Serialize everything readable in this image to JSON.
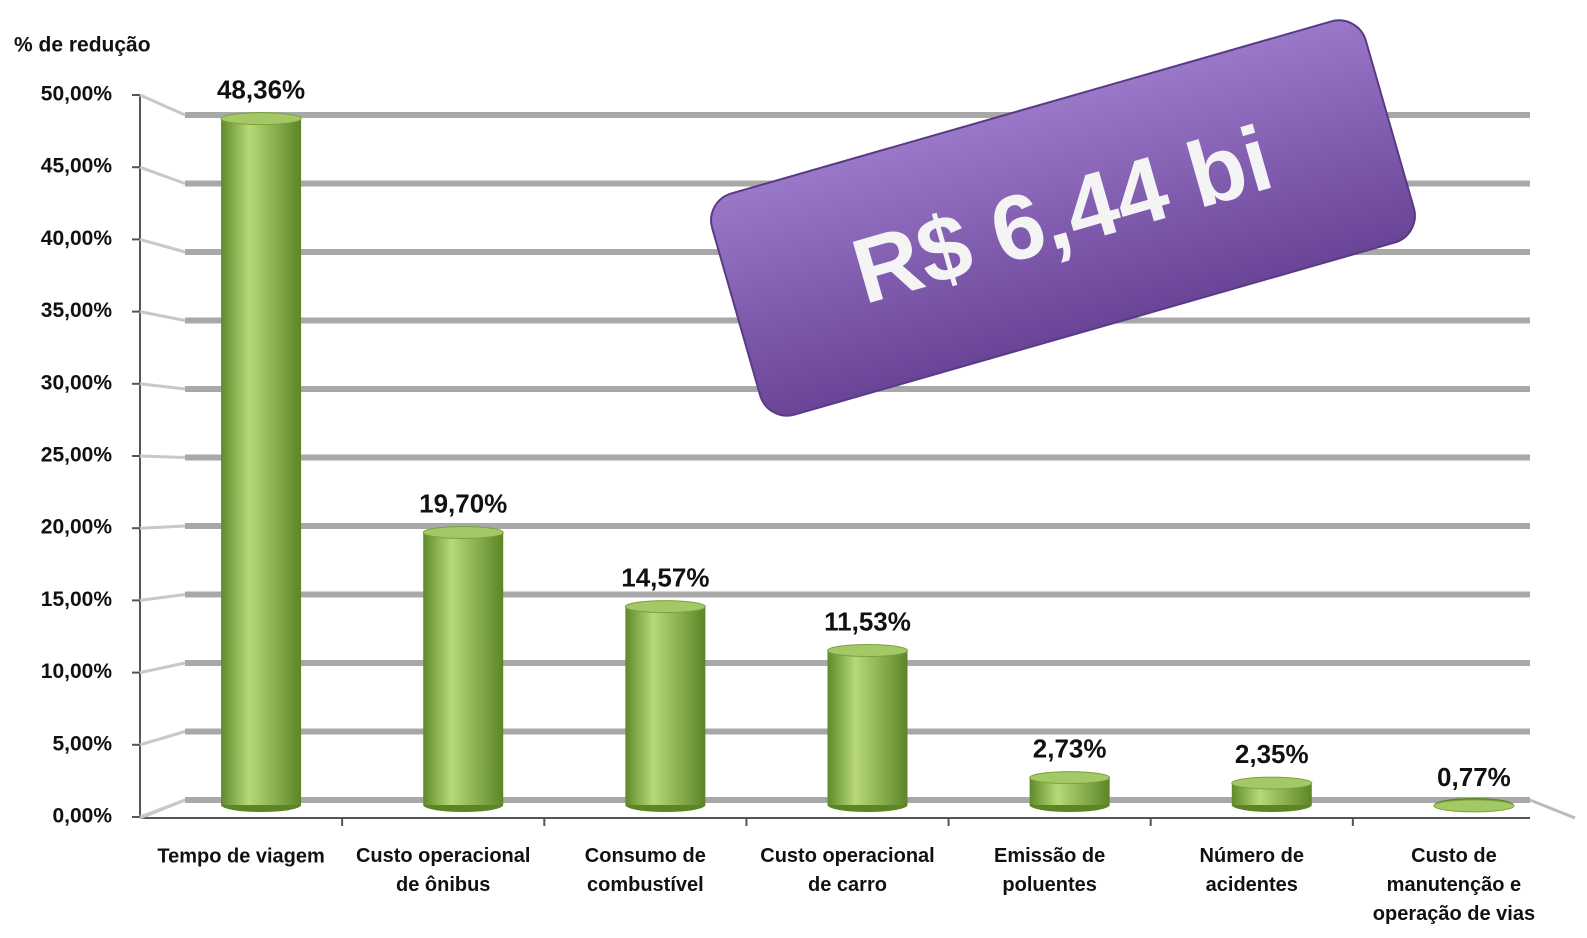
{
  "chart_data": {
    "type": "bar",
    "y_axis_label": "% de redução",
    "annotation": "R$ 6,44 bi",
    "categories": [
      "Tempo de viagem",
      "Custo operacional\nde ônibus",
      "Consumo de\ncombustível",
      "Custo operacional\nde carro",
      "Emissão de\npoluentes",
      "Número de\nacidentes",
      "Custo de\nmanutenção e\noperação de vias"
    ],
    "values": [
      48.36,
      19.7,
      14.57,
      11.53,
      2.73,
      2.35,
      0.77
    ],
    "value_labels": [
      "48,36%",
      "19,70%",
      "14,57%",
      "11,53%",
      "2,73%",
      "2,35%",
      "0,77%"
    ],
    "color": "#8db54a",
    "ylim": [
      0,
      50
    ],
    "yticks": [
      {
        "value": 0,
        "label": "0,00%"
      },
      {
        "value": 5,
        "label": "5,00%"
      },
      {
        "value": 10,
        "label": "10,00%"
      },
      {
        "value": 15,
        "label": "15,00%"
      },
      {
        "value": 20,
        "label": "20,00%"
      },
      {
        "value": 25,
        "label": "25,00%"
      },
      {
        "value": 30,
        "label": "30,00%"
      },
      {
        "value": 35,
        "label": "35,00%"
      },
      {
        "value": 40,
        "label": "40,00%"
      },
      {
        "value": 45,
        "label": "45,00%"
      },
      {
        "value": 50,
        "label": "50,00%"
      }
    ],
    "grid": true
  }
}
